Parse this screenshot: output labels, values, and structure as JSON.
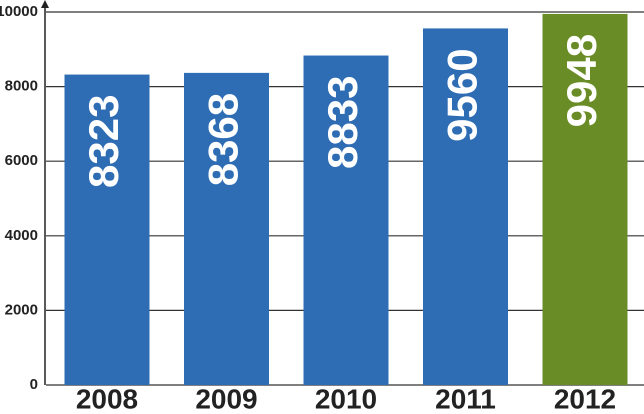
{
  "chart_data": {
    "type": "bar",
    "categories": [
      "2008",
      "2009",
      "2010",
      "2011",
      "2012"
    ],
    "values": [
      8323,
      8368,
      8833,
      9560,
      9948
    ],
    "colors": [
      "#2e6db4",
      "#2e6db4",
      "#2e6db4",
      "#2e6db4",
      "#6a8c26"
    ],
    "ylim": [
      0,
      10000
    ],
    "yticks": [
      0,
      2000,
      4000,
      6000,
      8000,
      10000
    ],
    "grid": true
  }
}
